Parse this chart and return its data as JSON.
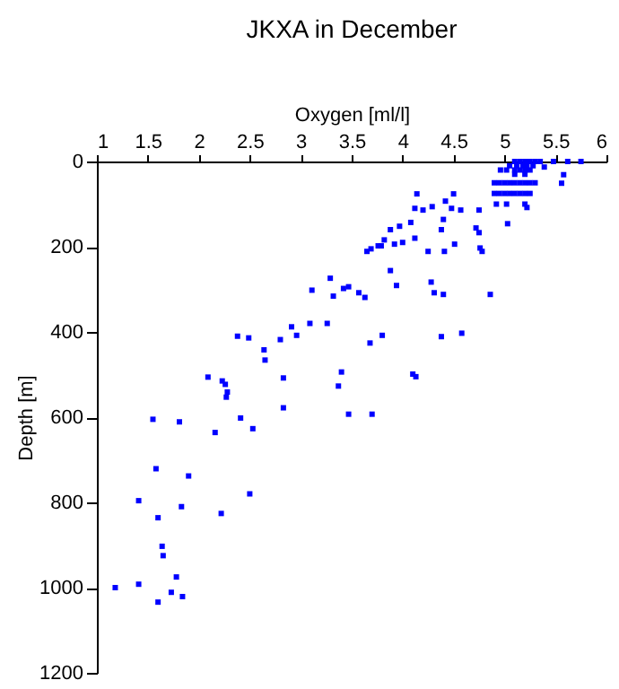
{
  "chart_data": {
    "type": "scatter",
    "title": "JKXA in December",
    "xlabel": "Oxygen [ml/l]",
    "ylabel": "Depth [m]",
    "xlim": [
      1,
      6
    ],
    "xticks": [
      1,
      1.5,
      2,
      2.5,
      3,
      3.5,
      4,
      4.5,
      5,
      5.5,
      6
    ],
    "ylim": [
      1200,
      0
    ],
    "yticks": [
      0,
      200,
      400,
      600,
      800,
      1000,
      1200
    ],
    "grid": false,
    "marker": "square",
    "series": [
      {
        "color": "#0000ff",
        "x": [
          5.1,
          5.15,
          5.2,
          5.25,
          5.3,
          5.35,
          5.48,
          5.62,
          5.75,
          5.05,
          5.12,
          5.18,
          5.22,
          5.28,
          5.39,
          4.96,
          5.02,
          5.1,
          5.15,
          5.2,
          5.25,
          5.1,
          5.2,
          5.58,
          4.9,
          4.95,
          5.0,
          5.05,
          5.1,
          5.15,
          5.2,
          5.25,
          5.3,
          5.56,
          4.9,
          4.95,
          5.0,
          5.05,
          5.1,
          5.15,
          5.2,
          5.25,
          4.92,
          5.02,
          5.2,
          5.22,
          5.03,
          4.75,
          4.14,
          4.12,
          4.2,
          4.29,
          4.42,
          4.5,
          4.48,
          4.57,
          4.4,
          4.08,
          3.97,
          3.88,
          3.82,
          3.79,
          3.92,
          4.0,
          4.12,
          4.25,
          4.41,
          4.51,
          4.38,
          4.72,
          4.75,
          4.76,
          4.78,
          3.65,
          3.69,
          3.76,
          3.88,
          3.94,
          4.28,
          4.31,
          4.4,
          4.86,
          3.29,
          3.11,
          3.32,
          3.42,
          3.47,
          3.57,
          3.63,
          3.09,
          3.26,
          2.91,
          2.96,
          2.38,
          2.49,
          2.64,
          2.65,
          2.8,
          2.83,
          2.83,
          2.09,
          2.23,
          2.26,
          2.28,
          2.27,
          1.55,
          1.81,
          2.16,
          2.41,
          2.53,
          3.4,
          3.37,
          3.47,
          3.7,
          3.68,
          3.8,
          4.1,
          4.13,
          4.38,
          4.58,
          1.58,
          1.9,
          1.41,
          1.83,
          2.5,
          1.6,
          2.22,
          1.64,
          1.65,
          1.78,
          1.18,
          1.41,
          1.73,
          1.84,
          1.6
        ],
        "values": [
          0,
          0,
          0,
          0,
          0,
          0,
          0,
          0,
          0,
          10,
          10,
          10,
          10,
          10,
          13,
          20,
          20,
          20,
          20,
          20,
          20,
          30,
          30,
          31,
          50,
          50,
          50,
          50,
          50,
          50,
          50,
          50,
          50,
          51,
          75,
          75,
          75,
          75,
          75,
          75,
          75,
          75,
          100,
          100,
          100,
          108,
          146,
          114,
          76,
          110,
          114,
          106,
          93,
          76,
          110,
          114,
          136,
          143,
          152,
          160,
          184,
          198,
          194,
          190,
          180,
          211,
          211,
          194,
          160,
          156,
          167,
          203,
          211,
          211,
          205,
          198,
          256,
          291,
          283,
          308,
          312,
          312,
          274,
          302,
          316,
          298,
          294,
          308,
          319,
          380,
          380,
          388,
          408,
          410,
          414,
          442,
          466,
          418,
          508,
          578,
          506,
          515,
          523,
          541,
          553,
          605,
          611,
          636,
          602,
          627,
          494,
          527,
          593,
          593,
          426,
          408,
          499,
          505,
          411,
          403,
          721,
          738,
          796,
          810,
          780,
          836,
          826,
          903,
          925,
          975,
          1000,
          992,
          1011,
          1021,
          1034
        ]
      }
    ]
  }
}
